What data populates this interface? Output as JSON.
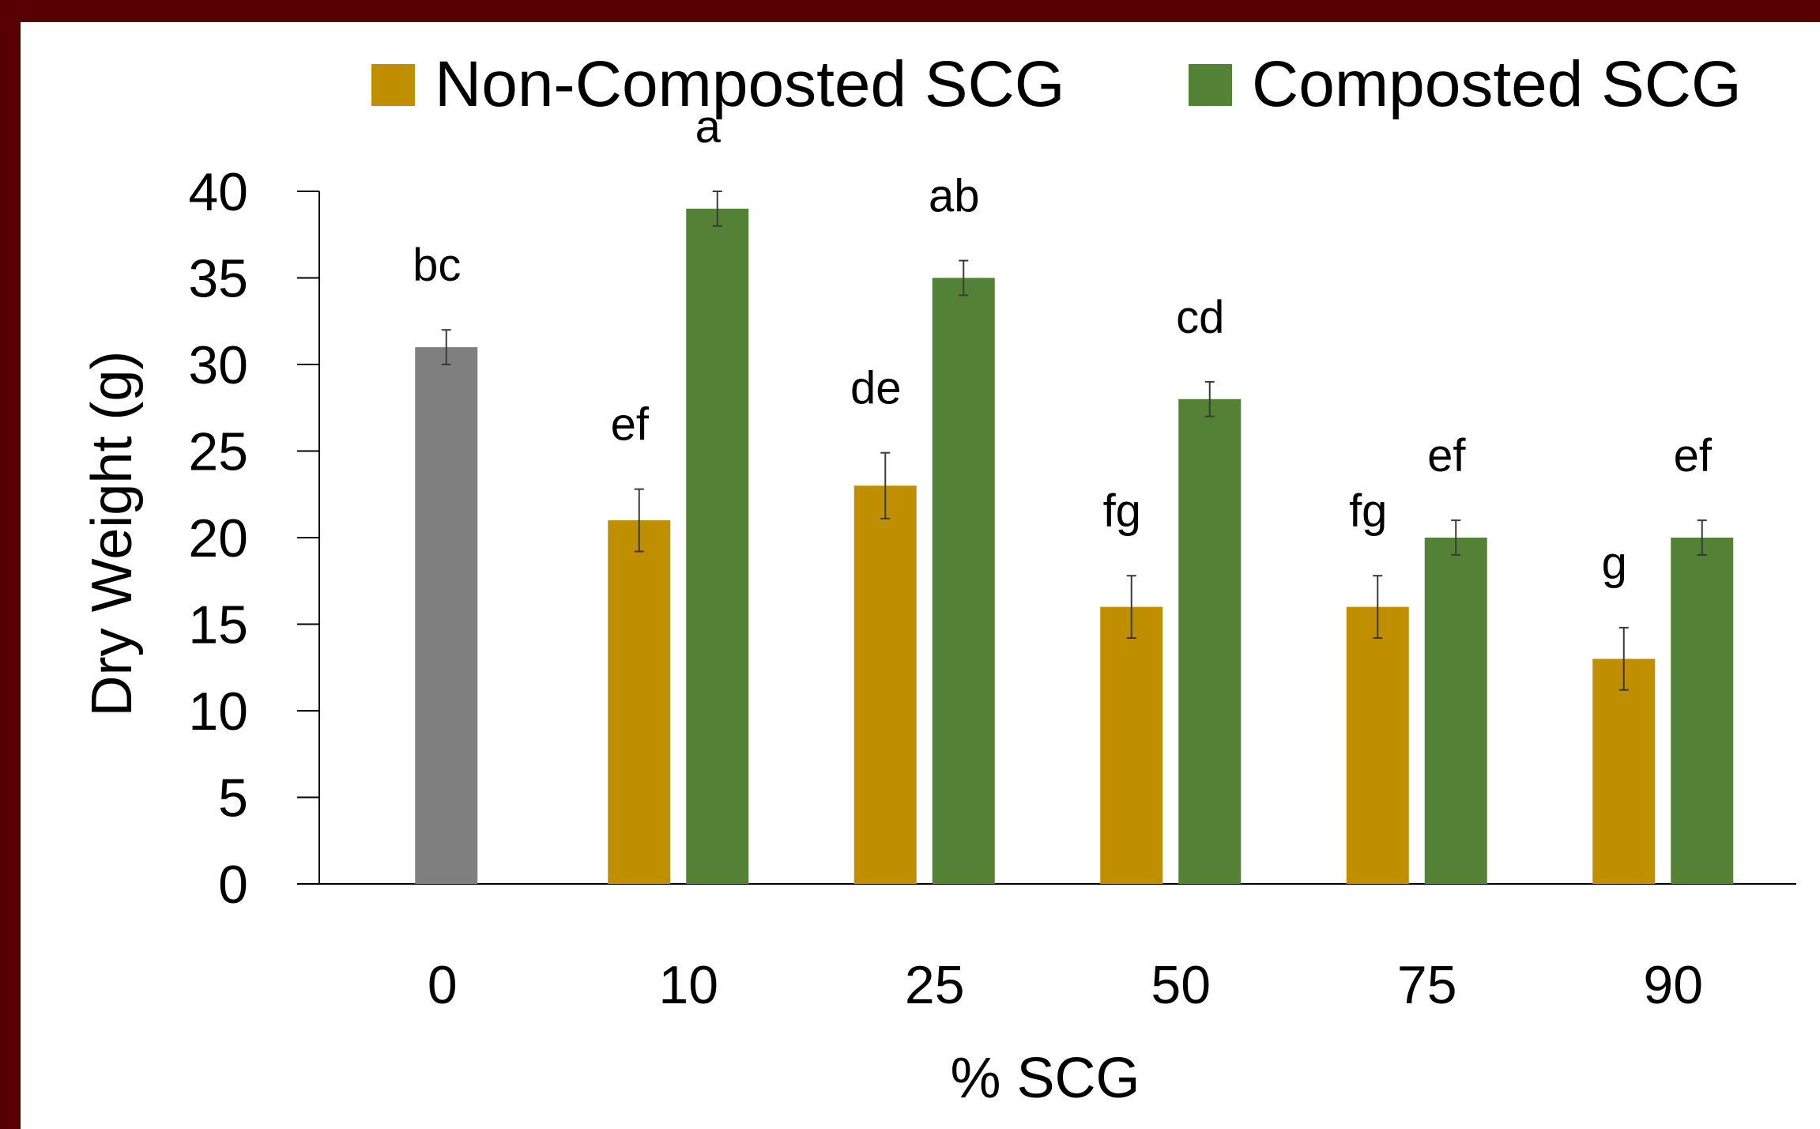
{
  "chart_data": {
    "type": "bar",
    "title": "",
    "xlabel": "% SCG",
    "ylabel": "Dry Weight (g)",
    "ylim": [
      0,
      40
    ],
    "ytick_step": 5,
    "yticks": [
      "0",
      "5",
      "10",
      "15",
      "20",
      "25",
      "30",
      "35",
      "40"
    ],
    "categories": [
      "0",
      "10",
      "25",
      "50",
      "75",
      "90"
    ],
    "legend_position": "top",
    "series": [
      {
        "name": "Non-Composted SCG",
        "color": "#BF8F00",
        "values": [
          null,
          21,
          23,
          16,
          16,
          13
        ],
        "errors": [
          null,
          1.8,
          1.9,
          1.8,
          1.8,
          1.8
        ],
        "letters": [
          "",
          "ef",
          "de",
          "fg",
          "fg",
          "g"
        ]
      },
      {
        "name": "Composted SCG",
        "color": "#538135",
        "values": [
          null,
          39,
          35,
          28,
          20,
          20
        ],
        "errors": [
          null,
          1.0,
          1.0,
          1.0,
          1.0,
          1.0
        ],
        "letters": [
          "",
          "a",
          "ab",
          "cd",
          "ef",
          "ef"
        ]
      }
    ],
    "control": {
      "category": "0",
      "color": "#7F7F7F",
      "value": 31,
      "error": 1.0,
      "letter": "bc"
    }
  }
}
